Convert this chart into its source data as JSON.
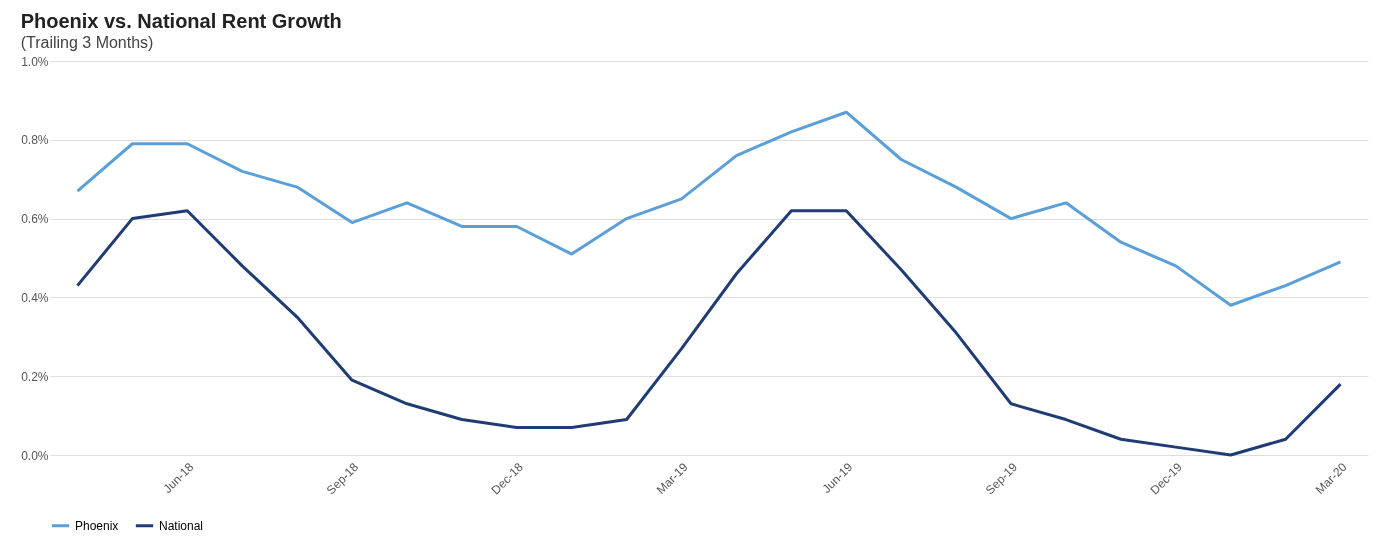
{
  "chart_data": {
    "type": "line",
    "title": "Phoenix vs. National Rent Growth",
    "subtitle": "(Trailing 3 Months)",
    "categories": [
      null,
      null,
      "Jun-18",
      null,
      null,
      "Sep-18",
      null,
      null,
      "Dec-18",
      null,
      null,
      "Mar-19",
      null,
      null,
      "Jun-19",
      null,
      null,
      "Sep-19",
      null,
      null,
      "Dec-19",
      null,
      null,
      "Mar-20"
    ],
    "series": [
      {
        "name": "Phoenix",
        "color": "#5b9fd8",
        "values": [
          0.67,
          0.79,
          0.79,
          0.72,
          0.68,
          0.59,
          0.64,
          0.58,
          0.58,
          0.51,
          0.6,
          0.65,
          0.76,
          0.82,
          0.87,
          0.75,
          0.68,
          0.6,
          0.64,
          0.54,
          0.48,
          0.38,
          0.43,
          0.49
        ]
      },
      {
        "name": "National",
        "color": "#1f3c74",
        "values": [
          0.43,
          0.6,
          0.62,
          0.48,
          0.35,
          0.19,
          0.13,
          0.09,
          0.07,
          0.07,
          0.09,
          0.27,
          0.46,
          0.62,
          0.62,
          0.47,
          0.31,
          0.13,
          0.09,
          0.04,
          0.02,
          0.0,
          0.04,
          0.18
        ]
      }
    ],
    "ylim": [
      0,
      1.0
    ],
    "yticks": [
      {
        "value": 0,
        "label": "0.0%"
      },
      {
        "value": 0.2,
        "label": "0.2%"
      },
      {
        "value": 0.4,
        "label": "0.4%"
      },
      {
        "value": 0.6,
        "label": "0.6%"
      },
      {
        "value": 0.8,
        "label": "0.8%"
      },
      {
        "value": 1.0,
        "label": "1.0%"
      }
    ],
    "grid": "y",
    "legend": "bottom",
    "marker": "none",
    "line_style": "solid"
  }
}
